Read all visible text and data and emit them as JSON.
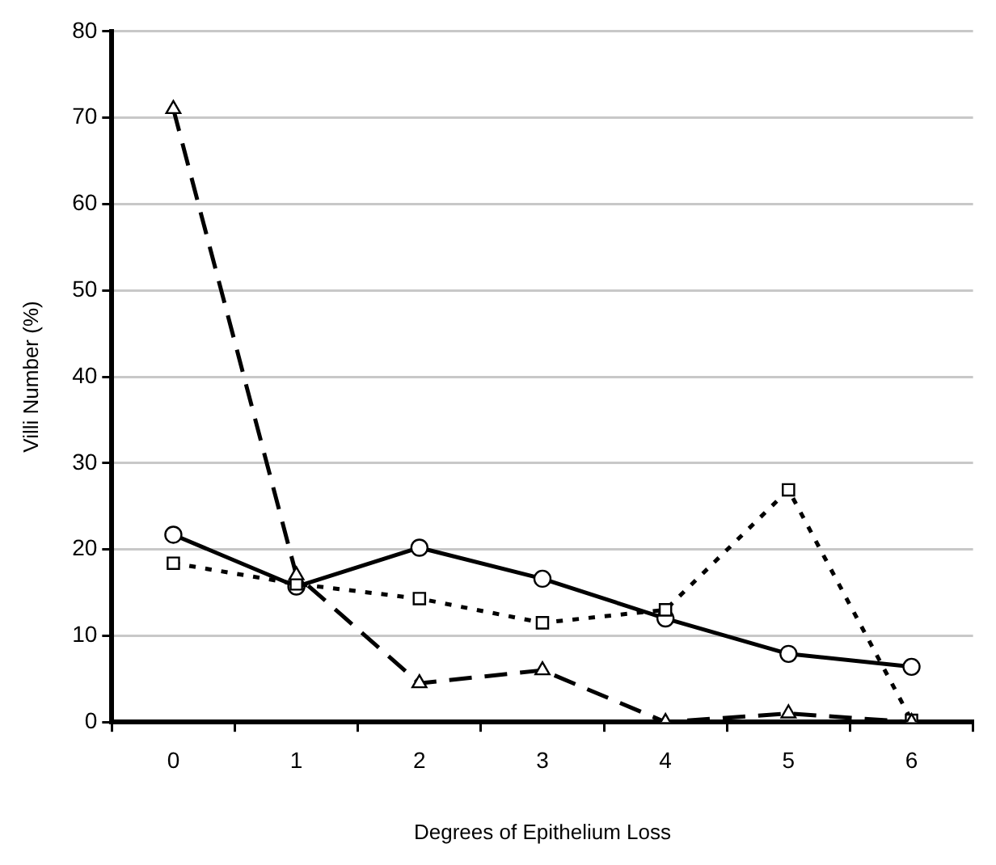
{
  "chart_data": {
    "type": "line",
    "xlabel": "Degrees of Epithelium Loss",
    "ylabel": "Villi Number (%)",
    "categories": [
      "0",
      "1",
      "2",
      "3",
      "4",
      "5",
      "6"
    ],
    "series": [
      {
        "color": "#000000",
        "marker": "circle",
        "line_style": "solid",
        "values": [
          21.7,
          15.7,
          20.2,
          16.6,
          12.0,
          7.9,
          6.4
        ]
      },
      {
        "color": "#000000",
        "marker": "square",
        "line_style": "dotted",
        "values": [
          18.4,
          16.0,
          14.3,
          11.5,
          13.0,
          26.9,
          0.2
        ]
      },
      {
        "color": "#000000",
        "marker": "triangle",
        "line_style": "dashed",
        "values": [
          71,
          17.0,
          4.5,
          6.0,
          0,
          1.0,
          0
        ]
      }
    ],
    "ylim": [
      0,
      80
    ],
    "yticks": [
      0,
      10,
      20,
      30,
      40,
      50,
      60,
      70,
      80
    ],
    "grid": "y",
    "legend": false
  }
}
